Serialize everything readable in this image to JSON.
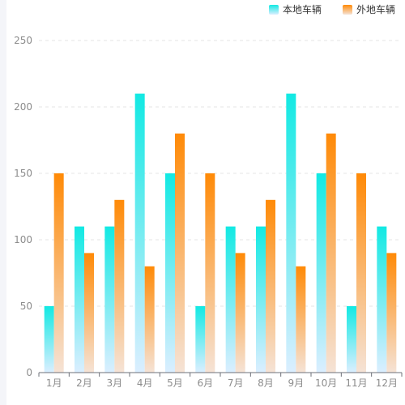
{
  "chart_data": {
    "type": "bar",
    "title": "",
    "xlabel": "",
    "ylabel": "",
    "categories": [
      "1月",
      "2月",
      "3月",
      "4月",
      "5月",
      "6月",
      "7月",
      "8月",
      "9月",
      "10月",
      "11月",
      "12月"
    ],
    "series": [
      {
        "name": "本地车辆",
        "values": [
          50,
          110,
          110,
          210,
          150,
          50,
          110,
          110,
          210,
          150,
          50,
          110
        ],
        "color_top": "#12e9e3",
        "color_bottom": "#dbeeff"
      },
      {
        "name": "外地车辆",
        "values": [
          150,
          90,
          130,
          80,
          180,
          150,
          90,
          130,
          80,
          180,
          150,
          90
        ],
        "color_top": "#ff8a07",
        "color_bottom": "#f5e3d6"
      }
    ],
    "ylim": [
      0,
      250
    ],
    "yticks": [
      0,
      50,
      100,
      150,
      200,
      250
    ],
    "grid": true,
    "legend_position": "top-right"
  }
}
